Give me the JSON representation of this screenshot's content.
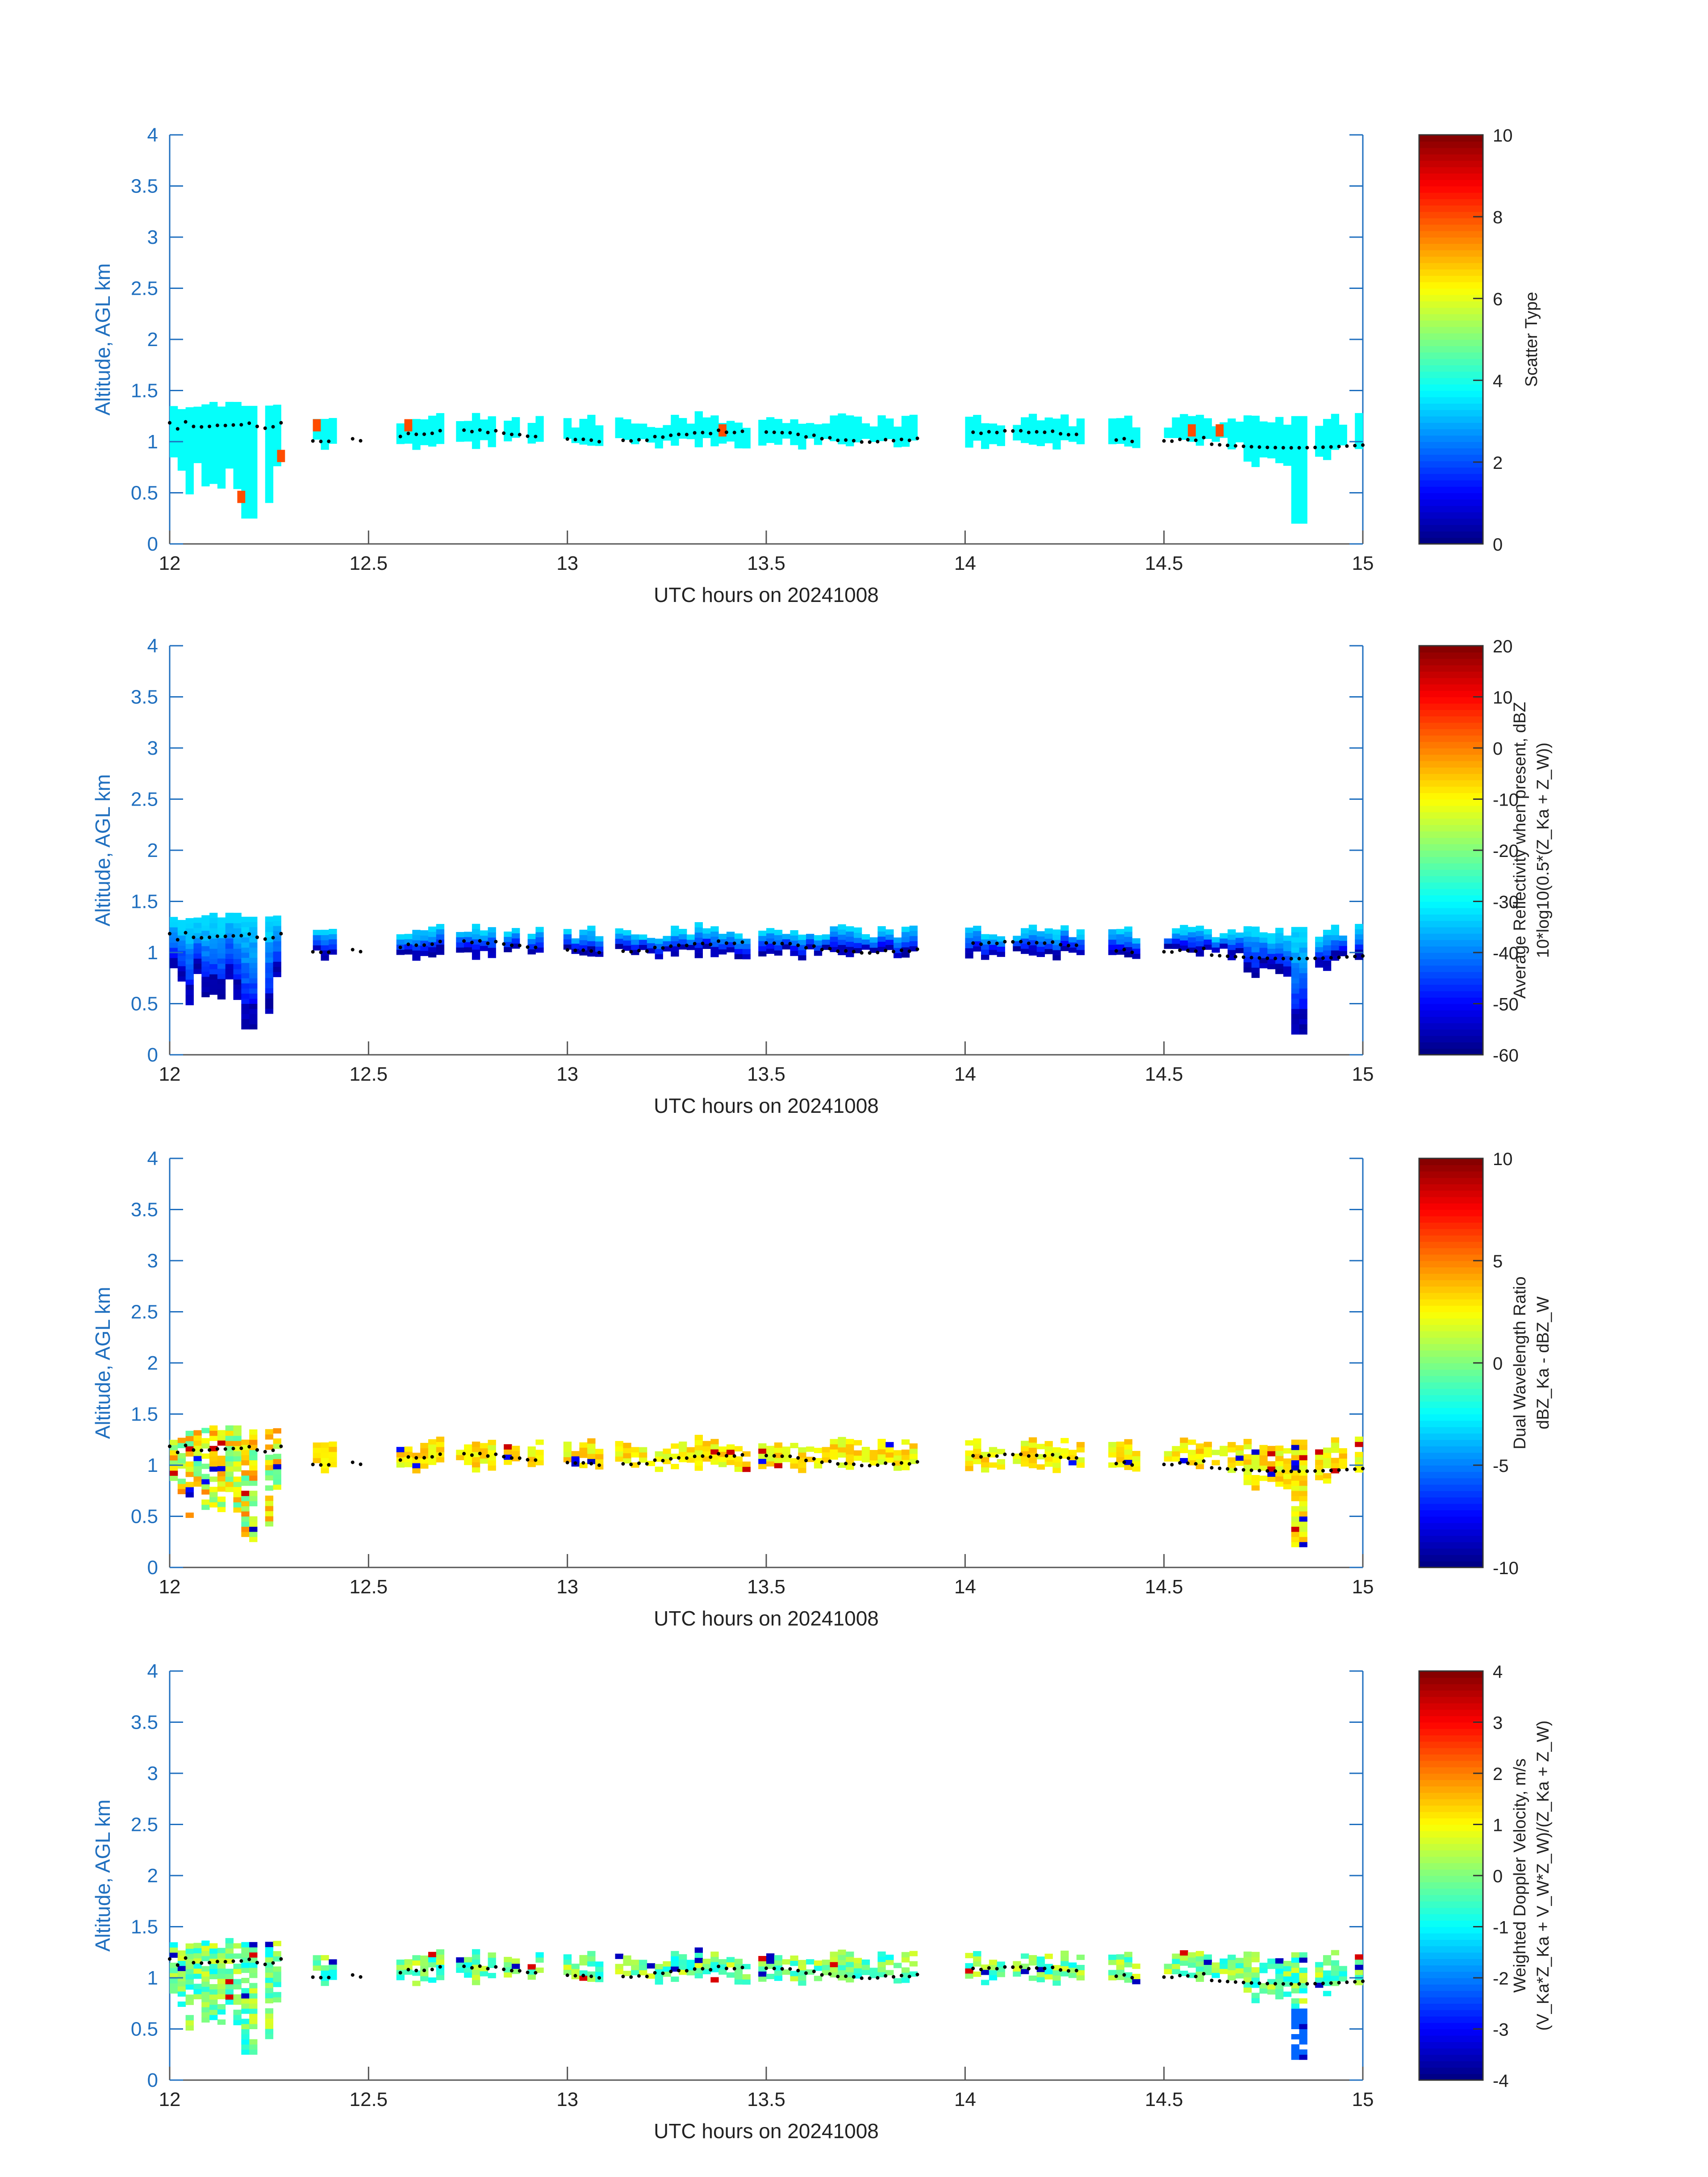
{
  "chart_data": [
    {
      "type": "heatmap",
      "title": "",
      "xlabel": "UTC hours on 20241008",
      "ylabel": "Altitude, AGL km",
      "xlim": [
        12,
        15
      ],
      "ylim": [
        0,
        4
      ],
      "xticks": [
        "12",
        "12.5",
        "13",
        "13.5",
        "14",
        "14.5",
        "15"
      ],
      "yticks": [
        "0",
        "0.5",
        "1",
        "1.5",
        "2",
        "2.5",
        "3",
        "3.5",
        "4"
      ],
      "colorbar": {
        "label_lines": [
          "Scatter Type"
        ],
        "range": [
          0,
          10
        ],
        "ticks": [
          "0",
          "2",
          "4",
          "6",
          "8",
          "10"
        ]
      },
      "description_value": 3.8,
      "cells_note": "cloud layer near 1 km, mostly value ~3.8 (cyan) with sparse ~8 (red) pixels",
      "extent_segments": [
        [
          12.0,
          12.28
        ],
        [
          12.36,
          12.41
        ],
        [
          12.57,
          12.68
        ],
        [
          12.72,
          12.93
        ],
        [
          12.99,
          13.08
        ],
        [
          13.12,
          13.45
        ],
        [
          13.48,
          13.88
        ],
        [
          14.0,
          14.29
        ],
        [
          14.36,
          14.43
        ],
        [
          14.48,
          15.0
        ]
      ],
      "hot_pixels": [
        [
          12.17,
          0.4
        ],
        [
          12.27,
          0.8
        ],
        [
          12.36,
          1.1
        ],
        [
          12.59,
          1.1
        ],
        [
          13.38,
          1.05
        ],
        [
          14.56,
          1.05
        ],
        [
          14.63,
          1.05
        ]
      ]
    },
    {
      "type": "heatmap",
      "title": "",
      "xlabel": "UTC hours on 20241008",
      "ylabel": "Altitude, AGL km",
      "xlim": [
        12,
        15
      ],
      "ylim": [
        0,
        4
      ],
      "xticks": [
        "12",
        "12.5",
        "13",
        "13.5",
        "14",
        "14.5",
        "15"
      ],
      "yticks": [
        "0",
        "0.5",
        "1",
        "1.5",
        "2",
        "2.5",
        "3",
        "3.5",
        "4"
      ],
      "colorbar": {
        "label_lines": [
          "Average Reflectivity when present, dBZ",
          "10*log10(0.5*(Z_Ka + Z_W))"
        ],
        "range": [
          -60,
          20
        ],
        "ticks": [
          "-60",
          "-50",
          "-40",
          "-30",
          "-20",
          "-10",
          "0",
          "10",
          "20"
        ]
      },
      "cells_note": "values roughly -55 to -30 dBZ (dark blue to cyan)"
    },
    {
      "type": "heatmap",
      "title": "",
      "xlabel": "UTC hours on 20241008",
      "ylabel": "Altitude, AGL km",
      "xlim": [
        12,
        15
      ],
      "ylim": [
        0,
        4
      ],
      "xticks": [
        "12",
        "12.5",
        "13",
        "13.5",
        "14",
        "14.5",
        "15"
      ],
      "yticks": [
        "0",
        "0.5",
        "1",
        "1.5",
        "2",
        "2.5",
        "3",
        "3.5",
        "4"
      ],
      "colorbar": {
        "label_lines": [
          "Dual Wavelength Ratio",
          "dBZ_Ka - dBZ_W"
        ],
        "range": [
          -10,
          10
        ],
        "ticks": [
          "-10",
          "-5",
          "0",
          "5",
          "10"
        ]
      },
      "cells_note": "values mostly ~1 to 4 dB (green-yellow-orange)"
    },
    {
      "type": "heatmap",
      "title": "",
      "xlabel": "UTC hours on 20241008",
      "ylabel": "Altitude, AGL km",
      "xlim": [
        12,
        15
      ],
      "ylim": [
        0,
        4
      ],
      "xticks": [
        "12",
        "12.5",
        "13",
        "13.5",
        "14",
        "14.5",
        "15"
      ],
      "yticks": [
        "0",
        "0.5",
        "1",
        "1.5",
        "2",
        "2.5",
        "3",
        "3.5",
        "4"
      ],
      "colorbar": {
        "label_lines": [
          "Weighted Doppler Velocity, m/s",
          "(V_Ka*Z_Ka + V_W*Z_W)/(Z_Ka + Z_W)"
        ],
        "range": [
          -4,
          4
        ],
        "ticks": [
          "-4",
          "-3",
          "-2",
          "-1",
          "0",
          "1",
          "2",
          "3",
          "4"
        ]
      },
      "cells_note": "values mostly ~-1.5 to 1 m/s (cyan-green-yellow)"
    }
  ]
}
